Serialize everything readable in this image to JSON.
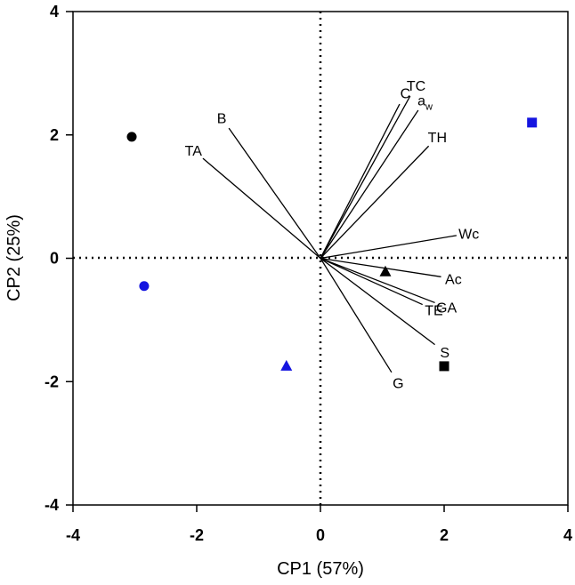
{
  "chart_data": {
    "type": "scatter",
    "title": "",
    "xlabel": "CP1 (57%)",
    "ylabel": "CP2 (25%)",
    "xlim": [
      -4,
      4
    ],
    "ylim": [
      -4,
      4
    ],
    "xticks": [
      -4,
      -2,
      0,
      2,
      4
    ],
    "yticks": [
      -4,
      -2,
      0,
      2,
      4
    ],
    "grid": false,
    "vectors": [
      {
        "label": "C",
        "sub": "",
        "x": 1.28,
        "y": 2.5
      },
      {
        "label": "TC",
        "sub": "",
        "x": 1.45,
        "y": 2.63
      },
      {
        "label": "a",
        "sub": "w",
        "x": 1.58,
        "y": 2.4
      },
      {
        "label": "TH",
        "sub": "",
        "x": 1.75,
        "y": 1.82
      },
      {
        "label": "Wc",
        "sub": "",
        "x": 2.2,
        "y": 0.37
      },
      {
        "label": "Ac",
        "sub": "",
        "x": 1.95,
        "y": -0.3
      },
      {
        "label": "GA",
        "sub": "",
        "x": 1.85,
        "y": -0.72
      },
      {
        "label": "TE",
        "sub": "",
        "x": 1.65,
        "y": -0.75
      },
      {
        "label": "S",
        "sub": "",
        "x": 1.85,
        "y": -1.4
      },
      {
        "label": "G",
        "sub": "",
        "x": 1.15,
        "y": -1.85
      },
      {
        "label": "B",
        "sub": "",
        "x": -1.48,
        "y": 2.11
      },
      {
        "label": "TA",
        "sub": "",
        "x": -1.9,
        "y": 1.62
      }
    ],
    "points": [
      {
        "name": "black-circle",
        "shape": "circle",
        "color": "#000000",
        "x": -3.05,
        "y": 1.97
      },
      {
        "name": "blue-circle",
        "shape": "circle",
        "color": "#1515e0",
        "x": -2.85,
        "y": -0.45
      },
      {
        "name": "blue-triangle",
        "shape": "triangle",
        "color": "#1515e0",
        "x": -0.55,
        "y": -1.75
      },
      {
        "name": "black-triangle",
        "shape": "triangle",
        "color": "#000000",
        "x": 1.05,
        "y": -0.22
      },
      {
        "name": "black-square",
        "shape": "square",
        "color": "#000000",
        "x": 2.0,
        "y": -1.75
      },
      {
        "name": "blue-square",
        "shape": "square",
        "color": "#1515e0",
        "x": 3.42,
        "y": 2.2
      }
    ]
  }
}
